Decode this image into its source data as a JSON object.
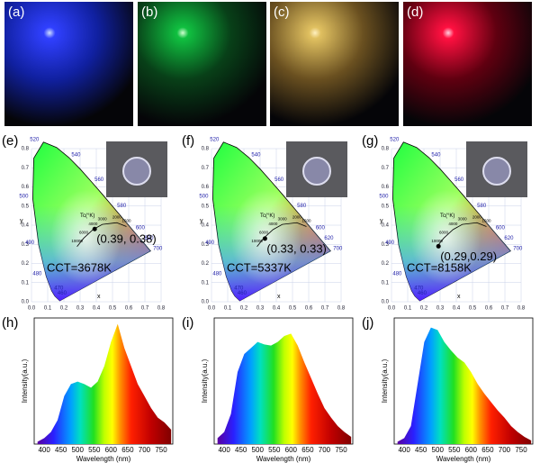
{
  "photos": [
    {
      "label": "(a)"
    },
    {
      "label": "(b)"
    },
    {
      "label": "(c)"
    },
    {
      "label": "(d)"
    }
  ],
  "cie": {
    "x_label": "x",
    "y_label": "y",
    "tc_label": "Tc(°K)",
    "xticks": [
      "0.0",
      "0.1",
      "0.2",
      "0.3",
      "0.4",
      "0.5",
      "0.6",
      "0.7",
      "0.8"
    ],
    "yticks": [
      "0.0",
      "0.1",
      "0.2",
      "0.3",
      "0.4",
      "0.5",
      "0.6",
      "0.7",
      "0.8"
    ],
    "wavelength_labels": [
      "460",
      "470",
      "480",
      "490",
      "500",
      "520",
      "540",
      "560",
      "580",
      "600",
      "620",
      "700"
    ],
    "tc_labels": [
      "10000",
      "6000",
      "4000",
      "3000",
      "2000",
      "1500"
    ],
    "panels": [
      {
        "label": "(e)",
        "cct": "CCT=3678K",
        "coords": "(0.39, 0.38)",
        "point": [
          0.39,
          0.38
        ]
      },
      {
        "label": "(f)",
        "cct": "CCT=5337K",
        "coords": "(0.33, 0.33)",
        "point": [
          0.33,
          0.33
        ]
      },
      {
        "label": "(g)",
        "cct": "CCT=8158K",
        "coords": "(0.29,0.29)",
        "point": [
          0.29,
          0.29
        ]
      }
    ]
  },
  "chart_data": [
    {
      "type": "area",
      "label": "(h)",
      "x_label": "Wavelength (nm)",
      "y_label": "Intensity(a.u.)",
      "xlim": [
        370,
        785
      ],
      "ylim": [
        0,
        1.05
      ],
      "xticks": [
        400,
        450,
        500,
        550,
        600,
        650,
        700,
        750
      ],
      "x": [
        380,
        400,
        420,
        440,
        460,
        480,
        500,
        520,
        540,
        560,
        580,
        600,
        620,
        640,
        660,
        680,
        700,
        720,
        740,
        760,
        780
      ],
      "values": [
        0.02,
        0.05,
        0.1,
        0.2,
        0.4,
        0.5,
        0.52,
        0.5,
        0.47,
        0.52,
        0.65,
        0.85,
        1.0,
        0.8,
        0.65,
        0.5,
        0.4,
        0.3,
        0.22,
        0.18,
        0.12
      ]
    },
    {
      "type": "area",
      "label": "(i)",
      "x_label": "Wavelength (nm)",
      "y_label": "Intensity(a.u.)",
      "xlim": [
        370,
        785
      ],
      "ylim": [
        0,
        1.05
      ],
      "xticks": [
        400,
        450,
        500,
        550,
        600,
        650,
        700,
        750
      ],
      "x": [
        380,
        400,
        420,
        440,
        460,
        480,
        500,
        520,
        540,
        560,
        580,
        600,
        620,
        640,
        660,
        680,
        700,
        720,
        740,
        760,
        780
      ],
      "values": [
        0.05,
        0.1,
        0.25,
        0.6,
        0.75,
        0.8,
        0.85,
        0.83,
        0.82,
        0.85,
        0.9,
        0.92,
        0.82,
        0.68,
        0.55,
        0.42,
        0.3,
        0.22,
        0.15,
        0.1,
        0.06
      ]
    },
    {
      "type": "area",
      "label": "(j)",
      "x_label": "Wavelength (nm)",
      "y_label": "Intensity(a.u.)",
      "xlim": [
        370,
        785
      ],
      "ylim": [
        0,
        1.05
      ],
      "xticks": [
        400,
        450,
        500,
        550,
        600,
        650,
        700,
        750
      ],
      "x": [
        380,
        400,
        420,
        440,
        460,
        480,
        500,
        520,
        540,
        560,
        580,
        600,
        620,
        640,
        660,
        680,
        700,
        720,
        740,
        760,
        780
      ],
      "values": [
        0.02,
        0.05,
        0.15,
        0.5,
        0.85,
        0.97,
        0.95,
        0.85,
        0.78,
        0.72,
        0.68,
        0.6,
        0.5,
        0.42,
        0.35,
        0.28,
        0.22,
        0.15,
        0.1,
        0.06,
        0.03
      ]
    }
  ]
}
